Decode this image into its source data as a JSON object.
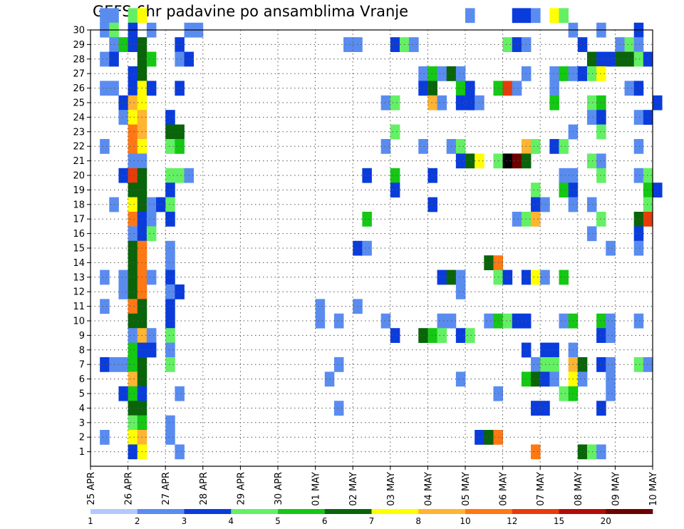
{
  "chart_data": {
    "type": "heatmap",
    "title": "GEFS 6hr padavine po ansamblima Vranje",
    "x_tick_labels": [
      "25 APR",
      "26 APR",
      "27 APR",
      "28 APR",
      "29 APR",
      "30 APR",
      "01 MAY",
      "02 MAY",
      "03 MAY",
      "04 MAY",
      "05 MAY",
      "06 MAY",
      "07 MAY",
      "08 MAY",
      "09 MAY",
      "10 MAY"
    ],
    "y_tick_labels": [
      "1",
      "2",
      "3",
      "4",
      "5",
      "6",
      "7",
      "8",
      "9",
      "10",
      "11",
      "12",
      "13",
      "14",
      "15",
      "16",
      "17",
      "18",
      "19",
      "20",
      "21",
      "22",
      "23",
      "24",
      "25",
      "26",
      "27",
      "28",
      "29",
      "30"
    ],
    "y_range": [
      0,
      30
    ],
    "x_range_days": [
      0,
      15
    ],
    "time_step_hours": 6,
    "grid": true,
    "legend_position": "bottom",
    "legend_bounds": [
      1,
      2,
      3,
      4,
      5,
      6,
      7,
      8,
      10,
      12,
      15,
      20
    ],
    "legend_labels": [
      "1",
      "2",
      "3",
      "4",
      "5",
      "6",
      "7",
      "8",
      "10",
      "12",
      "15",
      "20"
    ],
    "colors": [
      "#b4c8ff",
      "#5a8cf0",
      "#0a3cdc",
      "#64f064",
      "#14c814",
      "#0a640a",
      "#ffff00",
      "#ffb432",
      "#ff7814",
      "#e63c0a",
      "#b40a0a",
      "#6e0000"
    ],
    "cells": [
      [
        30,
        1,
        1
      ],
      [
        30,
        2,
        1
      ],
      [
        30,
        4,
        3
      ],
      [
        30,
        5,
        6
      ],
      [
        30,
        40,
        1
      ],
      [
        30,
        45,
        2
      ],
      [
        30,
        46,
        2
      ],
      [
        30,
        47,
        1
      ],
      [
        30,
        49,
        6
      ],
      [
        30,
        50,
        3
      ],
      [
        29,
        1,
        1
      ],
      [
        29,
        2,
        3
      ],
      [
        29,
        4,
        2
      ],
      [
        29,
        6,
        1
      ],
      [
        29,
        10,
        1
      ],
      [
        29,
        11,
        1
      ],
      [
        29,
        51,
        1
      ],
      [
        29,
        54,
        1
      ],
      [
        29,
        58,
        2
      ],
      [
        28,
        2,
        1
      ],
      [
        28,
        3,
        4
      ],
      [
        28,
        4,
        2
      ],
      [
        28,
        5,
        5
      ],
      [
        28,
        9,
        2
      ],
      [
        28,
        27,
        1
      ],
      [
        28,
        28,
        1
      ],
      [
        28,
        32,
        2
      ],
      [
        28,
        33,
        3
      ],
      [
        28,
        34,
        1
      ],
      [
        28,
        44,
        3
      ],
      [
        28,
        45,
        2
      ],
      [
        28,
        46,
        1
      ],
      [
        28,
        52,
        2
      ],
      [
        28,
        56,
        1
      ],
      [
        28,
        57,
        3
      ],
      [
        28,
        58,
        1
      ],
      [
        27,
        1,
        1
      ],
      [
        27,
        2,
        2
      ],
      [
        27,
        5,
        5
      ],
      [
        27,
        6,
        4
      ],
      [
        27,
        9,
        1
      ],
      [
        27,
        10,
        2
      ],
      [
        27,
        53,
        5
      ],
      [
        27,
        54,
        2
      ],
      [
        27,
        55,
        2
      ],
      [
        27,
        56,
        5
      ],
      [
        27,
        57,
        5
      ],
      [
        27,
        58,
        3
      ],
      [
        27,
        59,
        2
      ],
      [
        26,
        4,
        2
      ],
      [
        26,
        5,
        5
      ],
      [
        26,
        35,
        1
      ],
      [
        26,
        36,
        4
      ],
      [
        26,
        37,
        1
      ],
      [
        26,
        38,
        5
      ],
      [
        26,
        39,
        1
      ],
      [
        26,
        46,
        1
      ],
      [
        26,
        49,
        1
      ],
      [
        26,
        50,
        4
      ],
      [
        26,
        51,
        1
      ],
      [
        26,
        52,
        2
      ],
      [
        26,
        53,
        3
      ],
      [
        26,
        54,
        6
      ],
      [
        25,
        1,
        1
      ],
      [
        25,
        2,
        1
      ],
      [
        25,
        4,
        2
      ],
      [
        25,
        5,
        6
      ],
      [
        25,
        6,
        2
      ],
      [
        25,
        9,
        2
      ],
      [
        25,
        35,
        2
      ],
      [
        25,
        36,
        5
      ],
      [
        25,
        39,
        4
      ],
      [
        25,
        40,
        2
      ],
      [
        25,
        43,
        4
      ],
      [
        25,
        44,
        9
      ],
      [
        25,
        45,
        1
      ],
      [
        25,
        49,
        1
      ],
      [
        25,
        57,
        1
      ],
      [
        25,
        58,
        2
      ],
      [
        24,
        3,
        2
      ],
      [
        24,
        4,
        7
      ],
      [
        24,
        5,
        6
      ],
      [
        24,
        31,
        1
      ],
      [
        24,
        32,
        3
      ],
      [
        24,
        36,
        7
      ],
      [
        24,
        37,
        1
      ],
      [
        24,
        39,
        2
      ],
      [
        24,
        40,
        2
      ],
      [
        24,
        41,
        1
      ],
      [
        24,
        49,
        4
      ],
      [
        24,
        53,
        3
      ],
      [
        24,
        54,
        4
      ],
      [
        24,
        60,
        2
      ],
      [
        23,
        3,
        1
      ],
      [
        23,
        4,
        6
      ],
      [
        23,
        5,
        7
      ],
      [
        23,
        8,
        2
      ],
      [
        23,
        53,
        1
      ],
      [
        23,
        54,
        2
      ],
      [
        23,
        58,
        1
      ],
      [
        23,
        59,
        2
      ],
      [
        22,
        4,
        8
      ],
      [
        22,
        5,
        7
      ],
      [
        22,
        8,
        5
      ],
      [
        22,
        9,
        5
      ],
      [
        22,
        32,
        3
      ],
      [
        22,
        51,
        1
      ],
      [
        22,
        54,
        3
      ],
      [
        21,
        1,
        1
      ],
      [
        21,
        4,
        8
      ],
      [
        21,
        5,
        6
      ],
      [
        21,
        8,
        3
      ],
      [
        21,
        9,
        4
      ],
      [
        21,
        31,
        1
      ],
      [
        21,
        35,
        1
      ],
      [
        21,
        38,
        1
      ],
      [
        21,
        39,
        3
      ],
      [
        21,
        46,
        7
      ],
      [
        21,
        47,
        3
      ],
      [
        21,
        49,
        2
      ],
      [
        21,
        50,
        3
      ],
      [
        21,
        58,
        1
      ],
      [
        20,
        4,
        1
      ],
      [
        20,
        5,
        1
      ],
      [
        20,
        39,
        2
      ],
      [
        20,
        40,
        5
      ],
      [
        20,
        41,
        6
      ],
      [
        20,
        43,
        3
      ],
      [
        20,
        44,
        12
      ],
      [
        20,
        45,
        11
      ],
      [
        20,
        46,
        5
      ],
      [
        20,
        53,
        3
      ],
      [
        20,
        54,
        1
      ],
      [
        19,
        3,
        2
      ],
      [
        19,
        4,
        9
      ],
      [
        19,
        5,
        5
      ],
      [
        19,
        8,
        3
      ],
      [
        19,
        9,
        3
      ],
      [
        19,
        10,
        1
      ],
      [
        19,
        29,
        2
      ],
      [
        19,
        32,
        4
      ],
      [
        19,
        36,
        2
      ],
      [
        19,
        50,
        1
      ],
      [
        19,
        51,
        1
      ],
      [
        19,
        54,
        3
      ],
      [
        19,
        58,
        1
      ],
      [
        19,
        59,
        3
      ],
      [
        18,
        4,
        5
      ],
      [
        18,
        5,
        5
      ],
      [
        18,
        8,
        2
      ],
      [
        18,
        32,
        2
      ],
      [
        18,
        47,
        3
      ],
      [
        18,
        50,
        4
      ],
      [
        18,
        51,
        2
      ],
      [
        18,
        59,
        4
      ],
      [
        18,
        60,
        2
      ],
      [
        17,
        2,
        1
      ],
      [
        17,
        4,
        6
      ],
      [
        17,
        5,
        5
      ],
      [
        17,
        6,
        1
      ],
      [
        17,
        7,
        2
      ],
      [
        17,
        8,
        3
      ],
      [
        17,
        36,
        2
      ],
      [
        17,
        47,
        2
      ],
      [
        17,
        48,
        1
      ],
      [
        17,
        51,
        1
      ],
      [
        17,
        53,
        1
      ],
      [
        17,
        59,
        3
      ],
      [
        16,
        4,
        8
      ],
      [
        16,
        5,
        2
      ],
      [
        16,
        6,
        1
      ],
      [
        16,
        8,
        2
      ],
      [
        16,
        29,
        4
      ],
      [
        16,
        45,
        1
      ],
      [
        16,
        46,
        3
      ],
      [
        16,
        47,
        7
      ],
      [
        16,
        54,
        3
      ],
      [
        16,
        58,
        5
      ],
      [
        16,
        59,
        9
      ],
      [
        15,
        4,
        1
      ],
      [
        15,
        5,
        2
      ],
      [
        15,
        6,
        3
      ],
      [
        15,
        53,
        1
      ],
      [
        15,
        58,
        2
      ],
      [
        14,
        4,
        5
      ],
      [
        14,
        5,
        8
      ],
      [
        14,
        8,
        1
      ],
      [
        14,
        28,
        2
      ],
      [
        14,
        29,
        1
      ],
      [
        14,
        55,
        1
      ],
      [
        14,
        58,
        1
      ],
      [
        13,
        4,
        5
      ],
      [
        13,
        5,
        8
      ],
      [
        13,
        8,
        1
      ],
      [
        13,
        42,
        5
      ],
      [
        13,
        43,
        8
      ],
      [
        12,
        1,
        1
      ],
      [
        12,
        3,
        1
      ],
      [
        12,
        4,
        5
      ],
      [
        12,
        5,
        8
      ],
      [
        12,
        6,
        1
      ],
      [
        12,
        8,
        2
      ],
      [
        12,
        37,
        2
      ],
      [
        12,
        38,
        5
      ],
      [
        12,
        39,
        1
      ],
      [
        12,
        43,
        3
      ],
      [
        12,
        44,
        2
      ],
      [
        12,
        46,
        2
      ],
      [
        12,
        47,
        6
      ],
      [
        12,
        48,
        1
      ],
      [
        12,
        50,
        4
      ],
      [
        11,
        3,
        1
      ],
      [
        11,
        4,
        5
      ],
      [
        11,
        5,
        8
      ],
      [
        11,
        8,
        1
      ],
      [
        11,
        9,
        2
      ],
      [
        11,
        39,
        1
      ],
      [
        10,
        1,
        1
      ],
      [
        10,
        4,
        8
      ],
      [
        10,
        5,
        5
      ],
      [
        10,
        8,
        2
      ],
      [
        10,
        24,
        1
      ],
      [
        10,
        28,
        1
      ],
      [
        9,
        4,
        5
      ],
      [
        9,
        5,
        5
      ],
      [
        9,
        8,
        2
      ],
      [
        9,
        24,
        1
      ],
      [
        9,
        26,
        1
      ],
      [
        9,
        31,
        1
      ],
      [
        9,
        37,
        1
      ],
      [
        9,
        38,
        1
      ],
      [
        9,
        42,
        1
      ],
      [
        9,
        43,
        4
      ],
      [
        9,
        44,
        3
      ],
      [
        9,
        45,
        2
      ],
      [
        9,
        46,
        2
      ],
      [
        9,
        50,
        1
      ],
      [
        9,
        51,
        4
      ],
      [
        9,
        54,
        4
      ],
      [
        9,
        55,
        1
      ],
      [
        9,
        58,
        1
      ],
      [
        8,
        4,
        1
      ],
      [
        8,
        5,
        7
      ],
      [
        8,
        6,
        1
      ],
      [
        8,
        8,
        3
      ],
      [
        8,
        32,
        2
      ],
      [
        8,
        35,
        5
      ],
      [
        8,
        36,
        4
      ],
      [
        8,
        37,
        3
      ],
      [
        8,
        39,
        2
      ],
      [
        8,
        40,
        3
      ],
      [
        8,
        54,
        2
      ],
      [
        8,
        55,
        1
      ],
      [
        7,
        4,
        4
      ],
      [
        7,
        5,
        2
      ],
      [
        7,
        6,
        2
      ],
      [
        7,
        8,
        1
      ],
      [
        7,
        46,
        2
      ],
      [
        7,
        48,
        2
      ],
      [
        7,
        49,
        2
      ],
      [
        7,
        51,
        1
      ],
      [
        6,
        1,
        2
      ],
      [
        6,
        2,
        1
      ],
      [
        6,
        3,
        1
      ],
      [
        6,
        4,
        4
      ],
      [
        6,
        5,
        5
      ],
      [
        6,
        8,
        3
      ],
      [
        6,
        26,
        1
      ],
      [
        6,
        47,
        1
      ],
      [
        6,
        48,
        3
      ],
      [
        6,
        49,
        3
      ],
      [
        6,
        51,
        7
      ],
      [
        6,
        52,
        5
      ],
      [
        6,
        54,
        2
      ],
      [
        6,
        55,
        1
      ],
      [
        6,
        58,
        3
      ],
      [
        6,
        59,
        1
      ],
      [
        5,
        4,
        7
      ],
      [
        5,
        5,
        5
      ],
      [
        5,
        25,
        1
      ],
      [
        5,
        39,
        1
      ],
      [
        5,
        46,
        4
      ],
      [
        5,
        47,
        5
      ],
      [
        5,
        48,
        2
      ],
      [
        5,
        49,
        1
      ],
      [
        5,
        51,
        6
      ],
      [
        5,
        52,
        1
      ],
      [
        5,
        55,
        1
      ],
      [
        4,
        3,
        2
      ],
      [
        4,
        4,
        4
      ],
      [
        4,
        5,
        2
      ],
      [
        4,
        9,
        1
      ],
      [
        4,
        43,
        1
      ],
      [
        4,
        50,
        3
      ],
      [
        4,
        51,
        4
      ],
      [
        4,
        55,
        1
      ],
      [
        3,
        4,
        5
      ],
      [
        3,
        5,
        5
      ],
      [
        3,
        26,
        1
      ],
      [
        3,
        47,
        2
      ],
      [
        3,
        48,
        2
      ],
      [
        3,
        54,
        2
      ],
      [
        2,
        4,
        3
      ],
      [
        2,
        5,
        4
      ],
      [
        2,
        8,
        1
      ],
      [
        1,
        1,
        1
      ],
      [
        1,
        4,
        6
      ],
      [
        1,
        5,
        7
      ],
      [
        1,
        8,
        1
      ],
      [
        1,
        41,
        2
      ],
      [
        1,
        42,
        5
      ],
      [
        1,
        43,
        8
      ],
      [
        0,
        4,
        2
      ],
      [
        0,
        5,
        6
      ],
      [
        0,
        9,
        1
      ],
      [
        0,
        47,
        8
      ],
      [
        0,
        52,
        5
      ],
      [
        0,
        53,
        3
      ],
      [
        0,
        54,
        1
      ]
    ]
  }
}
